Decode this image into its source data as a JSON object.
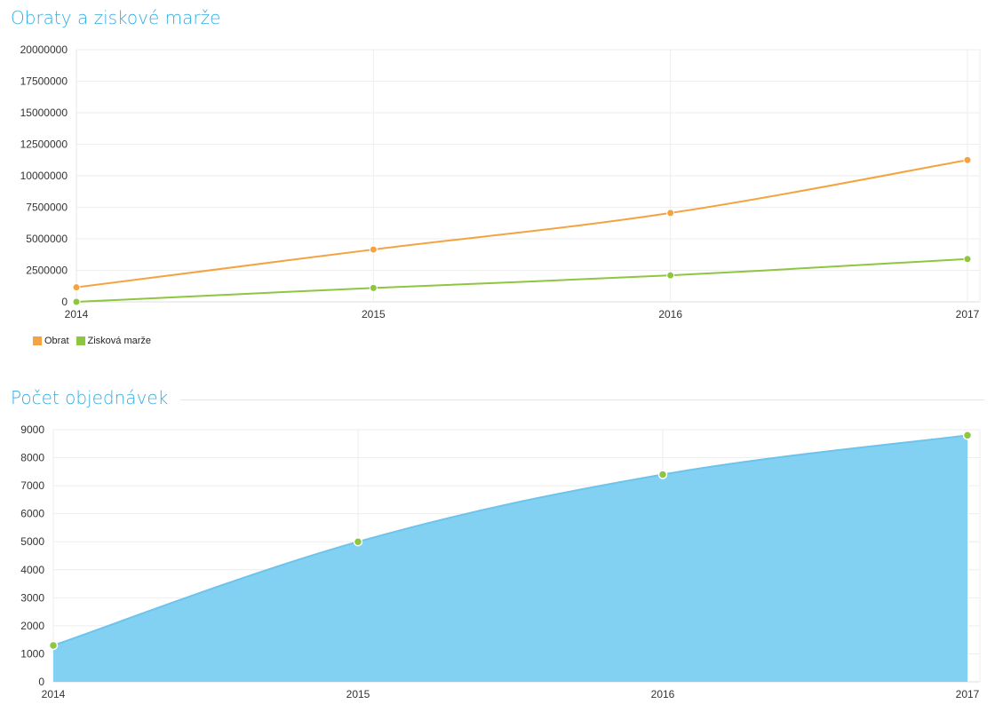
{
  "chart_data": [
    {
      "type": "line",
      "title": "Obraty a ziskové marže",
      "categories": [
        "2014",
        "2015",
        "2016",
        "2017"
      ],
      "yticks": [
        0,
        2500000,
        5000000,
        7500000,
        10000000,
        12500000,
        15000000,
        17500000,
        20000000
      ],
      "ylim": [
        0,
        20000000
      ],
      "grid": true,
      "legend_position": "bottom-left",
      "series": [
        {
          "name": "Obrat",
          "color": "#f4a340",
          "values": [
            1150000,
            4150000,
            7050000,
            11250000
          ]
        },
        {
          "name": "Zisková marže",
          "color": "#8dc63f",
          "values": [
            0,
            1100000,
            2100000,
            3400000
          ]
        }
      ]
    },
    {
      "type": "area",
      "title": "Počet objednávek",
      "categories": [
        "2014",
        "2015",
        "2016",
        "2017"
      ],
      "yticks": [
        0,
        1000,
        2000,
        3000,
        4000,
        5000,
        6000,
        7000,
        8000,
        9000
      ],
      "ylim": [
        0,
        9000
      ],
      "grid": true,
      "series": [
        {
          "fill": "#7ccff1",
          "line": "#6cc4ec",
          "point": "#8dc63f",
          "values": [
            1300,
            5000,
            7400,
            8800
          ]
        }
      ]
    }
  ]
}
